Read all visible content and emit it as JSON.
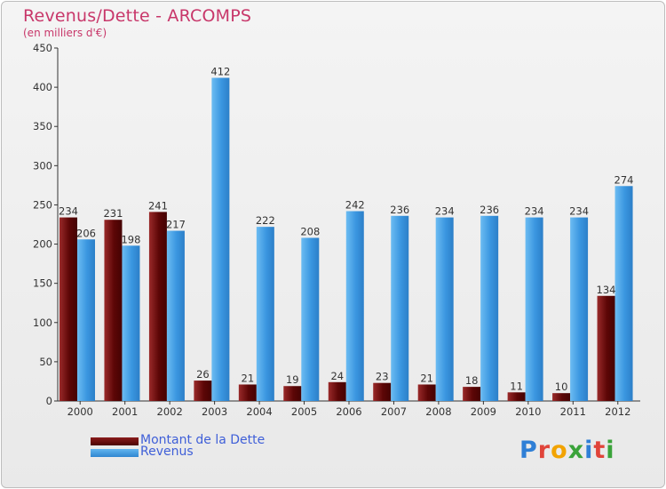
{
  "title": "Revenus/Dette - ARCOMPS",
  "subtitle": "(en milliers d'€)",
  "logo_text": "Proxiti",
  "colors": {
    "debt": "#6e0b0b",
    "revenue": "#3f9fe6",
    "title": "#c8376a",
    "legend_text": "#3f5fd8"
  },
  "chart_data": {
    "type": "bar",
    "categories": [
      "2000",
      "2001",
      "2002",
      "2003",
      "2004",
      "2005",
      "2006",
      "2007",
      "2008",
      "2009",
      "2010",
      "2011",
      "2012"
    ],
    "series": [
      {
        "name": "Montant de la Dette",
        "values": [
          234,
          231,
          241,
          26,
          21,
          19,
          24,
          23,
          21,
          18,
          11,
          10,
          134
        ]
      },
      {
        "name": "Revenus",
        "values": [
          206,
          198,
          217,
          412,
          222,
          208,
          242,
          236,
          234,
          236,
          234,
          234,
          274
        ]
      }
    ],
    "ylim": [
      0,
      450
    ],
    "yticks": [
      0,
      50,
      100,
      150,
      200,
      250,
      300,
      350,
      400,
      450
    ],
    "grid": false,
    "legend_position": "bottom-left"
  }
}
